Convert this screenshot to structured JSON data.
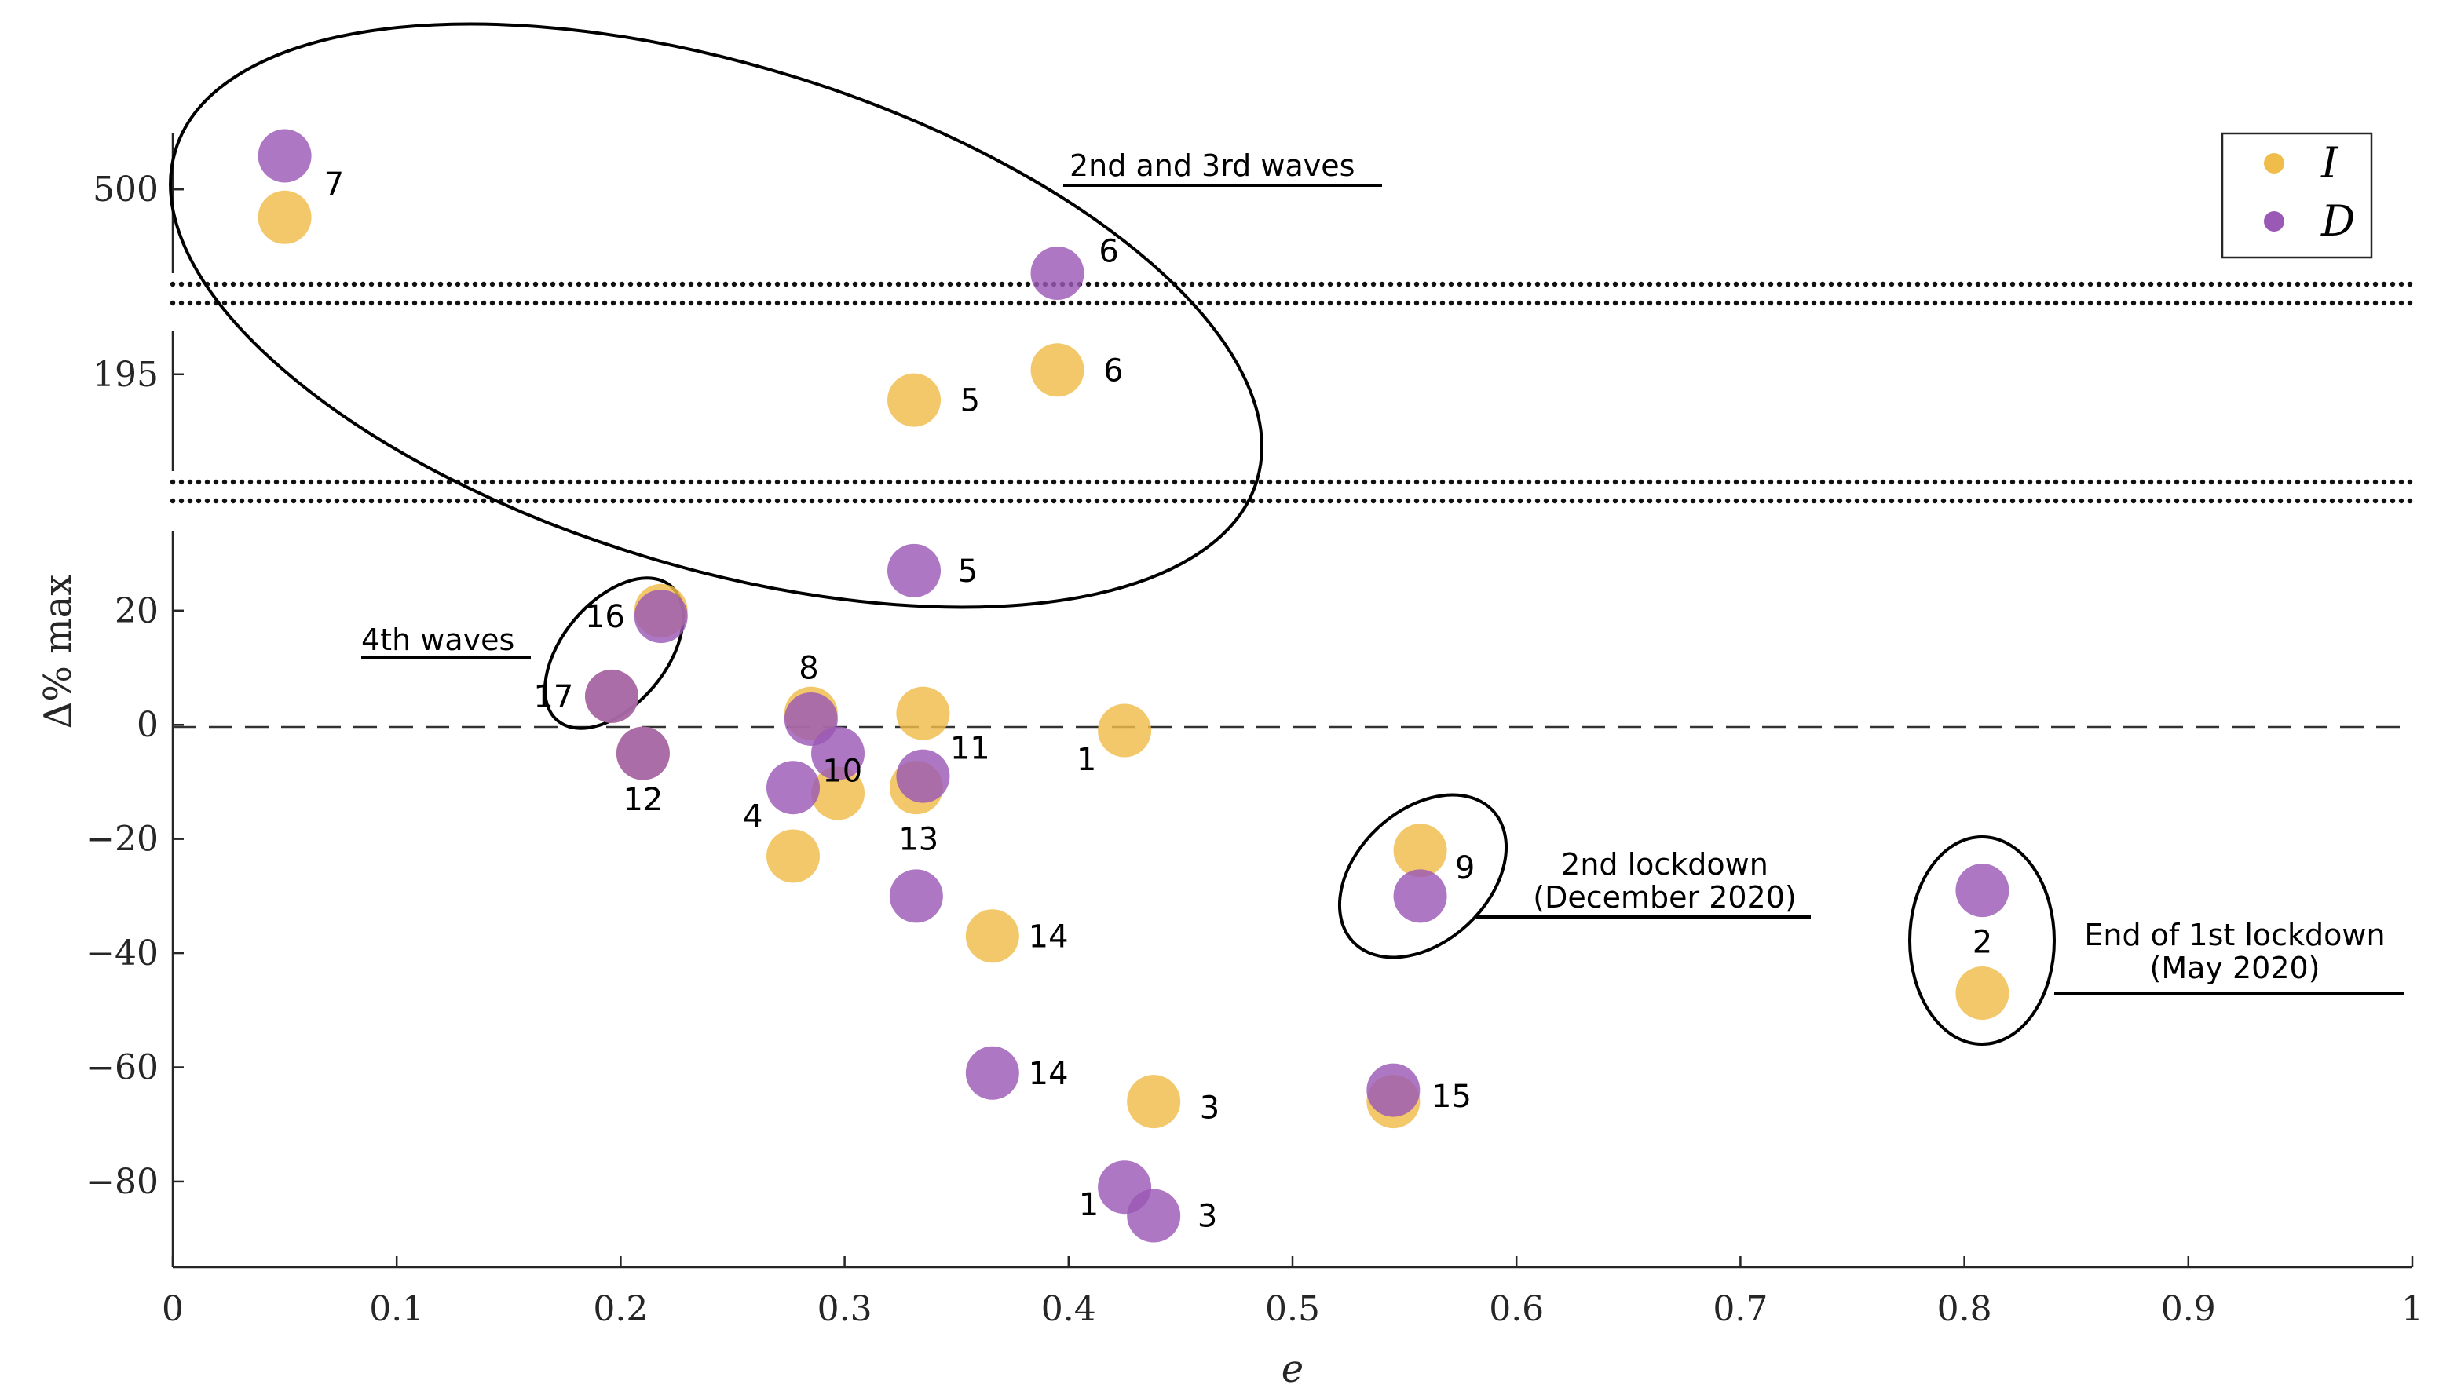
{
  "chart_data": {
    "type": "scatter",
    "xlabel": "e",
    "ylabel": "Δ% max",
    "xlim": [
      0,
      1
    ],
    "x_ticks": [
      "0",
      "0.1",
      "0.2",
      "0.3",
      "0.4",
      "0.5",
      "0.6",
      "0.7",
      "0.8",
      "0.9",
      "1"
    ],
    "y_ticks_main": [
      "20",
      "0",
      "−20",
      "−40",
      "−60",
      "−80"
    ],
    "y_ticks_break": [
      "195",
      "500"
    ],
    "ylim_main": [
      -95,
      34
    ],
    "segments": {
      "mid": {
        "ylim": [
          150,
          215
        ]
      },
      "top": {
        "ylim": [
          470,
          520
        ]
      }
    },
    "colors": {
      "I": "#f0bc4a",
      "D": "#9b59b6"
    },
    "legend": [
      {
        "key": "I",
        "label": "I"
      },
      {
        "key": "D",
        "label": "D"
      }
    ],
    "series": [
      {
        "name": "I",
        "points": [
          {
            "label": "1",
            "x": 0.425,
            "y": -1
          },
          {
            "label": "2",
            "x": 0.808,
            "y": -47
          },
          {
            "label": "3",
            "x": 0.438,
            "y": -66
          },
          {
            "label": "4",
            "x": 0.277,
            "y": -23
          },
          {
            "label": "5",
            "x": 0.331,
            "y": 183,
            "segment": "mid"
          },
          {
            "label": "6",
            "x": 0.395,
            "y": 197,
            "segment": "mid"
          },
          {
            "label": "7",
            "x": 0.05,
            "y": 490,
            "segment": "top"
          },
          {
            "label": "8",
            "x": 0.285,
            "y": 2
          },
          {
            "label": "9",
            "x": 0.557,
            "y": -22
          },
          {
            "label": "10",
            "x": 0.297,
            "y": -12
          },
          {
            "label": "11",
            "x": 0.335,
            "y": 2
          },
          {
            "label": "12",
            "x": 0.21,
            "y": -5
          },
          {
            "label": "13",
            "x": 0.332,
            "y": -11
          },
          {
            "label": "14",
            "x": 0.366,
            "y": -37
          },
          {
            "label": "15",
            "x": 0.545,
            "y": -66
          },
          {
            "label": "16",
            "x": 0.218,
            "y": 20
          },
          {
            "label": "17",
            "x": 0.196,
            "y": 5
          }
        ]
      },
      {
        "name": "D",
        "points": [
          {
            "label": "1",
            "x": 0.425,
            "y": -81
          },
          {
            "label": "2",
            "x": 0.808,
            "y": -29
          },
          {
            "label": "3",
            "x": 0.438,
            "y": -86
          },
          {
            "label": "4",
            "x": 0.277,
            "y": -11
          },
          {
            "label": "5",
            "x": 0.331,
            "y": 27
          },
          {
            "label": "6",
            "x": 0.395,
            "y": 470,
            "segment": "top"
          },
          {
            "label": "7",
            "x": 0.05,
            "y": 512,
            "segment": "top"
          },
          {
            "label": "8",
            "x": 0.285,
            "y": 1
          },
          {
            "label": "9",
            "x": 0.557,
            "y": -30
          },
          {
            "label": "10",
            "x": 0.297,
            "y": -5
          },
          {
            "label": "11",
            "x": 0.335,
            "y": -9
          },
          {
            "label": "12",
            "x": 0.21,
            "y": -5
          },
          {
            "label": "13",
            "x": 0.332,
            "y": -30
          },
          {
            "label": "14",
            "x": 0.366,
            "y": -61
          },
          {
            "label": "15",
            "x": 0.545,
            "y": -64
          },
          {
            "label": "16",
            "x": 0.218,
            "y": 19
          },
          {
            "label": "17",
            "x": 0.196,
            "y": 5
          }
        ]
      }
    ],
    "point_labels": [
      {
        "text": "7",
        "x": 0.072,
        "y": 502,
        "segment": "top"
      },
      {
        "text": "6",
        "x": 0.418,
        "y": 478,
        "segment": "top"
      },
      {
        "text": "6",
        "x": 0.42,
        "y": 197,
        "segment": "mid"
      },
      {
        "text": "5",
        "x": 0.356,
        "y": 183,
        "segment": "mid"
      },
      {
        "text": "5",
        "x": 0.355,
        "y": 27
      },
      {
        "text": "16",
        "x": 0.193,
        "y": 19
      },
      {
        "text": "17",
        "x": 0.17,
        "y": 5
      },
      {
        "text": "8",
        "x": 0.284,
        "y": 10
      },
      {
        "text": "12",
        "x": 0.21,
        "y": -13
      },
      {
        "text": "10",
        "x": 0.299,
        "y": -8
      },
      {
        "text": "11",
        "x": 0.356,
        "y": -4
      },
      {
        "text": "4",
        "x": 0.259,
        "y": -16
      },
      {
        "text": "13",
        "x": 0.333,
        "y": -20
      },
      {
        "text": "1",
        "x": 0.408,
        "y": -6
      },
      {
        "text": "9",
        "x": 0.577,
        "y": -25
      },
      {
        "text": "14",
        "x": 0.391,
        "y": -37
      },
      {
        "text": "2",
        "x": 0.808,
        "y": -38
      },
      {
        "text": "14",
        "x": 0.391,
        "y": -61
      },
      {
        "text": "3",
        "x": 0.463,
        "y": -67
      },
      {
        "text": "15",
        "x": 0.571,
        "y": -65
      },
      {
        "text": "1",
        "x": 0.409,
        "y": -84
      },
      {
        "text": "3",
        "x": 0.462,
        "y": -86
      }
    ],
    "annotations": {
      "waves23": "2nd and 3rd waves",
      "waves4": "4th waves",
      "lockdown2_line1": "2nd lockdown",
      "lockdown2_line2": "(December 2020)",
      "lockdown1_line1": "End of 1st lockdown",
      "lockdown1_line2": "(May 2020)"
    },
    "grid": false,
    "legend_position": "top-right"
  }
}
